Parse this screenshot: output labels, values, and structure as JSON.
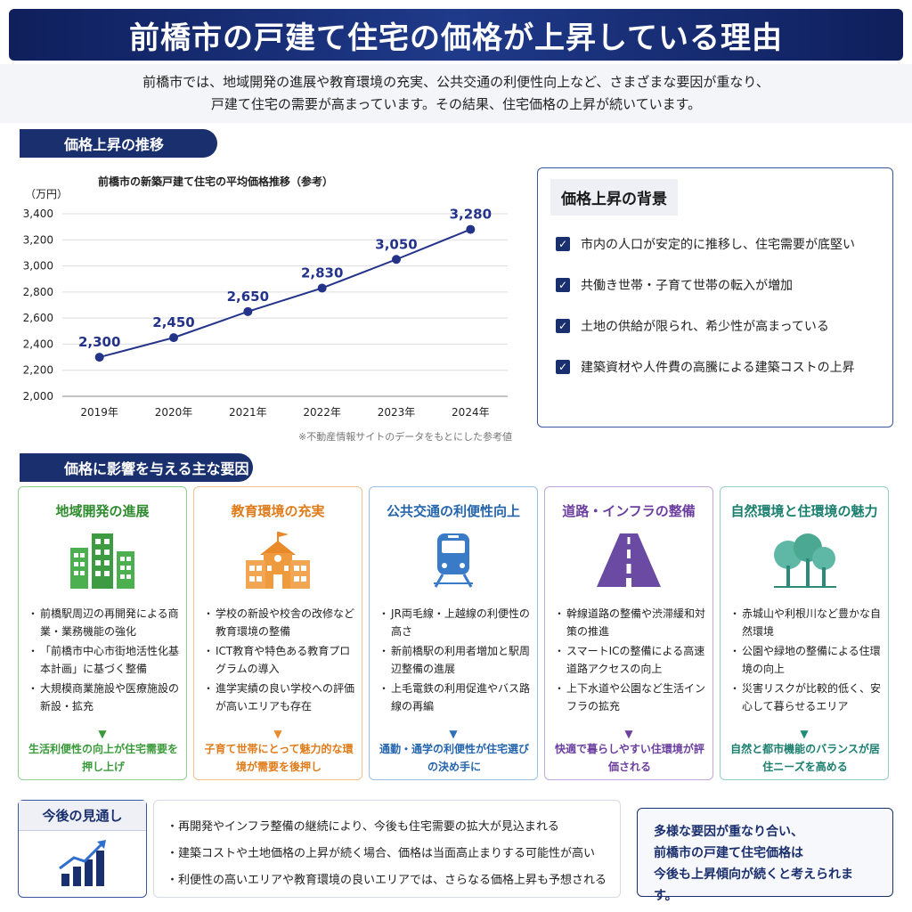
{
  "header": {
    "title": "前橋市の戸建て住宅の価格が上昇している理由",
    "intro_line1": "前橋市では、地域開発の進展や教育環境の充実、公共交通の利便性向上など、さまざまな要因が重なり、",
    "intro_line2": "戸建て住宅の需要が高まっています。その結果、住宅価格の上昇が続いています。"
  },
  "section_trend": {
    "label": "価格上昇の推移"
  },
  "chart_data": {
    "type": "line",
    "title": "前橋市の新築戸建て住宅の平均価格推移（参考）",
    "ylabel": "（万円）",
    "xlabel": "",
    "categories": [
      "2019年",
      "2020年",
      "2021年",
      "2022年",
      "2023年",
      "2024年"
    ],
    "values": [
      2300,
      2450,
      2650,
      2830,
      3050,
      3280
    ],
    "data_labels": [
      "2,300",
      "2,450",
      "2,650",
      "2,830",
      "3,050",
      "3,280"
    ],
    "y_ticks": [
      "2,000",
      "2,200",
      "2,400",
      "2,600",
      "2,800",
      "3,000",
      "3,200",
      "3,400"
    ],
    "ylim": [
      2000,
      3400
    ],
    "grid": true,
    "line_color": "#24338a",
    "note": "※不動産情報サイトのデータをもとにした参考値"
  },
  "background": {
    "title": "価格上昇の背景",
    "items": [
      "市内の人口が安定的に推移し、住宅需要が底堅い",
      "共働き世帯・子育て世帯の転入が増加",
      "土地の供給が限られ、希少性が高まっている",
      "建築資材や人件費の高騰による建築コストの上昇"
    ]
  },
  "section_factors": {
    "label": "価格に影響を与える主な要因"
  },
  "cards": [
    {
      "title": "地域開発の進展",
      "icon": "buildings-icon",
      "color": "#3a9a3a",
      "items": [
        "前橋駅周辺の再開発による商業・業務機能の強化",
        "「前橋市中心市街地活性化基本計画」に基づく整備",
        "大規模商業施設や医療施設の新設・拡充"
      ],
      "conclusion": "生活利便性の向上が住宅需要を押し上げ"
    },
    {
      "title": "教育環境の充実",
      "icon": "school-icon",
      "color": "#e8892a",
      "items": [
        "学校の新設や校舎の改修など教育環境の整備",
        "ICT教育や特色ある教育プログラムの導入",
        "進学実績の良い学校への評価が高いエリアも存在"
      ],
      "conclusion": "子育て世帯にとって魅力的な環境が需要を後押し"
    },
    {
      "title": "公共交通の利便性向上",
      "icon": "train-icon",
      "color": "#2f6fb8",
      "items": [
        "JR両毛線・上越線の利便性の高さ",
        "新前橋駅の利用者増加と駅周辺整備の進展",
        "上毛電鉄の利用促進やバス路線の再編"
      ],
      "conclusion": "通勤・通学の利便性が住宅選びの決め手に"
    },
    {
      "title": "道路・インフラの整備",
      "icon": "road-icon",
      "color": "#6b3f9e",
      "items": [
        "幹線道路の整備や渋滞緩和対策の推進",
        "スマートICの整備による高速道路アクセスの向上",
        "上下水道や公園など生活インフラの拡充"
      ],
      "conclusion": "快適で暮らしやすい住環境が評価される"
    },
    {
      "title": "自然環境と住環境の魅力",
      "icon": "trees-icon",
      "color": "#1e8a78",
      "items": [
        "赤城山や利根川など豊かな自然環境",
        "公園や緑地の整備による住環境の向上",
        "災害リスクが比較的低く、安心して暮らせるエリア"
      ],
      "conclusion": "自然と都市機能のバランスが居住ニーズを高める"
    }
  ],
  "outlook": {
    "title": "今後の見通し",
    "items": [
      "再開発やインフラ整備の継続により、今後も住宅需要の拡大が見込まれる",
      "建築コストや土地価格の上昇が続く場合、価格は当面高止まりする可能性が高い",
      "利便性の高いエリアや教育環境の良いエリアでは、さらなる価格上昇も予想される"
    ]
  },
  "summary": {
    "line1": "多様な要因が重なり合い、",
    "line2": "前橋市の戸建て住宅価格は",
    "line3": "今後も上昇傾向が続くと考えられます。"
  }
}
